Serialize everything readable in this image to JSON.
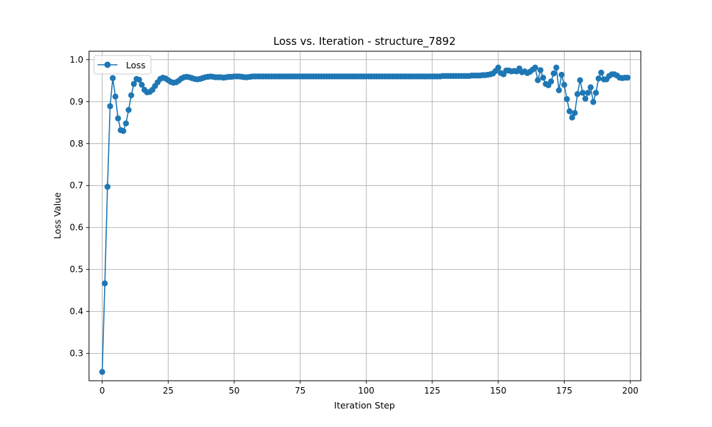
{
  "chart_data": {
    "type": "line",
    "title": "Loss vs. Iteration - structure_7892",
    "xlabel": "Iteration Step",
    "ylabel": "Loss Value",
    "xlim": [
      -5,
      204
    ],
    "ylim": [
      0.235,
      1.02
    ],
    "xticks": [
      0,
      25,
      50,
      75,
      100,
      125,
      150,
      175,
      200
    ],
    "yticks": [
      0.3,
      0.4,
      0.5,
      0.6,
      0.7,
      0.8,
      0.9,
      1.0
    ],
    "xtick_labels": [
      "0",
      "25",
      "50",
      "75",
      "100",
      "125",
      "150",
      "175",
      "200"
    ],
    "ytick_labels": [
      "0.3",
      "0.4",
      "0.5",
      "0.6",
      "0.7",
      "0.8",
      "0.9",
      "1.0"
    ],
    "grid": true,
    "legend_position": "top-left",
    "series": [
      {
        "name": "Loss",
        "color": "#1f77b4",
        "marker": "circle",
        "x_start": 0,
        "x_step": 1,
        "values": [
          0.256,
          0.467,
          0.697,
          0.889,
          0.956,
          0.912,
          0.86,
          0.832,
          0.83,
          0.848,
          0.88,
          0.915,
          0.942,
          0.954,
          0.952,
          0.94,
          0.928,
          0.922,
          0.923,
          0.928,
          0.937,
          0.946,
          0.954,
          0.957,
          0.955,
          0.951,
          0.947,
          0.945,
          0.946,
          0.95,
          0.955,
          0.958,
          0.959,
          0.958,
          0.956,
          0.954,
          0.953,
          0.954,
          0.956,
          0.958,
          0.959,
          0.96,
          0.959,
          0.958,
          0.958,
          0.958,
          0.957,
          0.958,
          0.959,
          0.959,
          0.96,
          0.96,
          0.96,
          0.959,
          0.958,
          0.958,
          0.959,
          0.96,
          0.96,
          0.96,
          0.96,
          0.96,
          0.96,
          0.96,
          0.96,
          0.96,
          0.96,
          0.96,
          0.96,
          0.96,
          0.96,
          0.96,
          0.96,
          0.96,
          0.96,
          0.96,
          0.96,
          0.96,
          0.96,
          0.96,
          0.96,
          0.96,
          0.96,
          0.96,
          0.96,
          0.96,
          0.96,
          0.96,
          0.96,
          0.96,
          0.96,
          0.96,
          0.96,
          0.96,
          0.96,
          0.96,
          0.96,
          0.96,
          0.96,
          0.96,
          0.96,
          0.96,
          0.96,
          0.96,
          0.96,
          0.96,
          0.96,
          0.96,
          0.96,
          0.96,
          0.96,
          0.96,
          0.96,
          0.96,
          0.96,
          0.96,
          0.96,
          0.96,
          0.96,
          0.96,
          0.96,
          0.96,
          0.96,
          0.96,
          0.96,
          0.96,
          0.96,
          0.96,
          0.96,
          0.961,
          0.961,
          0.961,
          0.961,
          0.961,
          0.961,
          0.961,
          0.961,
          0.961,
          0.961,
          0.961,
          0.962,
          0.962,
          0.962,
          0.962,
          0.963,
          0.963,
          0.964,
          0.965,
          0.967,
          0.973,
          0.981,
          0.968,
          0.965,
          0.974,
          0.974,
          0.972,
          0.973,
          0.972,
          0.979,
          0.97,
          0.972,
          0.968,
          0.971,
          0.976,
          0.981,
          0.951,
          0.975,
          0.957,
          0.942,
          0.939,
          0.948,
          0.967,
          0.981,
          0.927,
          0.964,
          0.94,
          0.906,
          0.877,
          0.862,
          0.873,
          0.918,
          0.951,
          0.921,
          0.907,
          0.921,
          0.934,
          0.899,
          0.921,
          0.955,
          0.969,
          0.953,
          0.953,
          0.961,
          0.965,
          0.965,
          0.962,
          0.957,
          0.956,
          0.957,
          0.957
        ]
      }
    ]
  }
}
